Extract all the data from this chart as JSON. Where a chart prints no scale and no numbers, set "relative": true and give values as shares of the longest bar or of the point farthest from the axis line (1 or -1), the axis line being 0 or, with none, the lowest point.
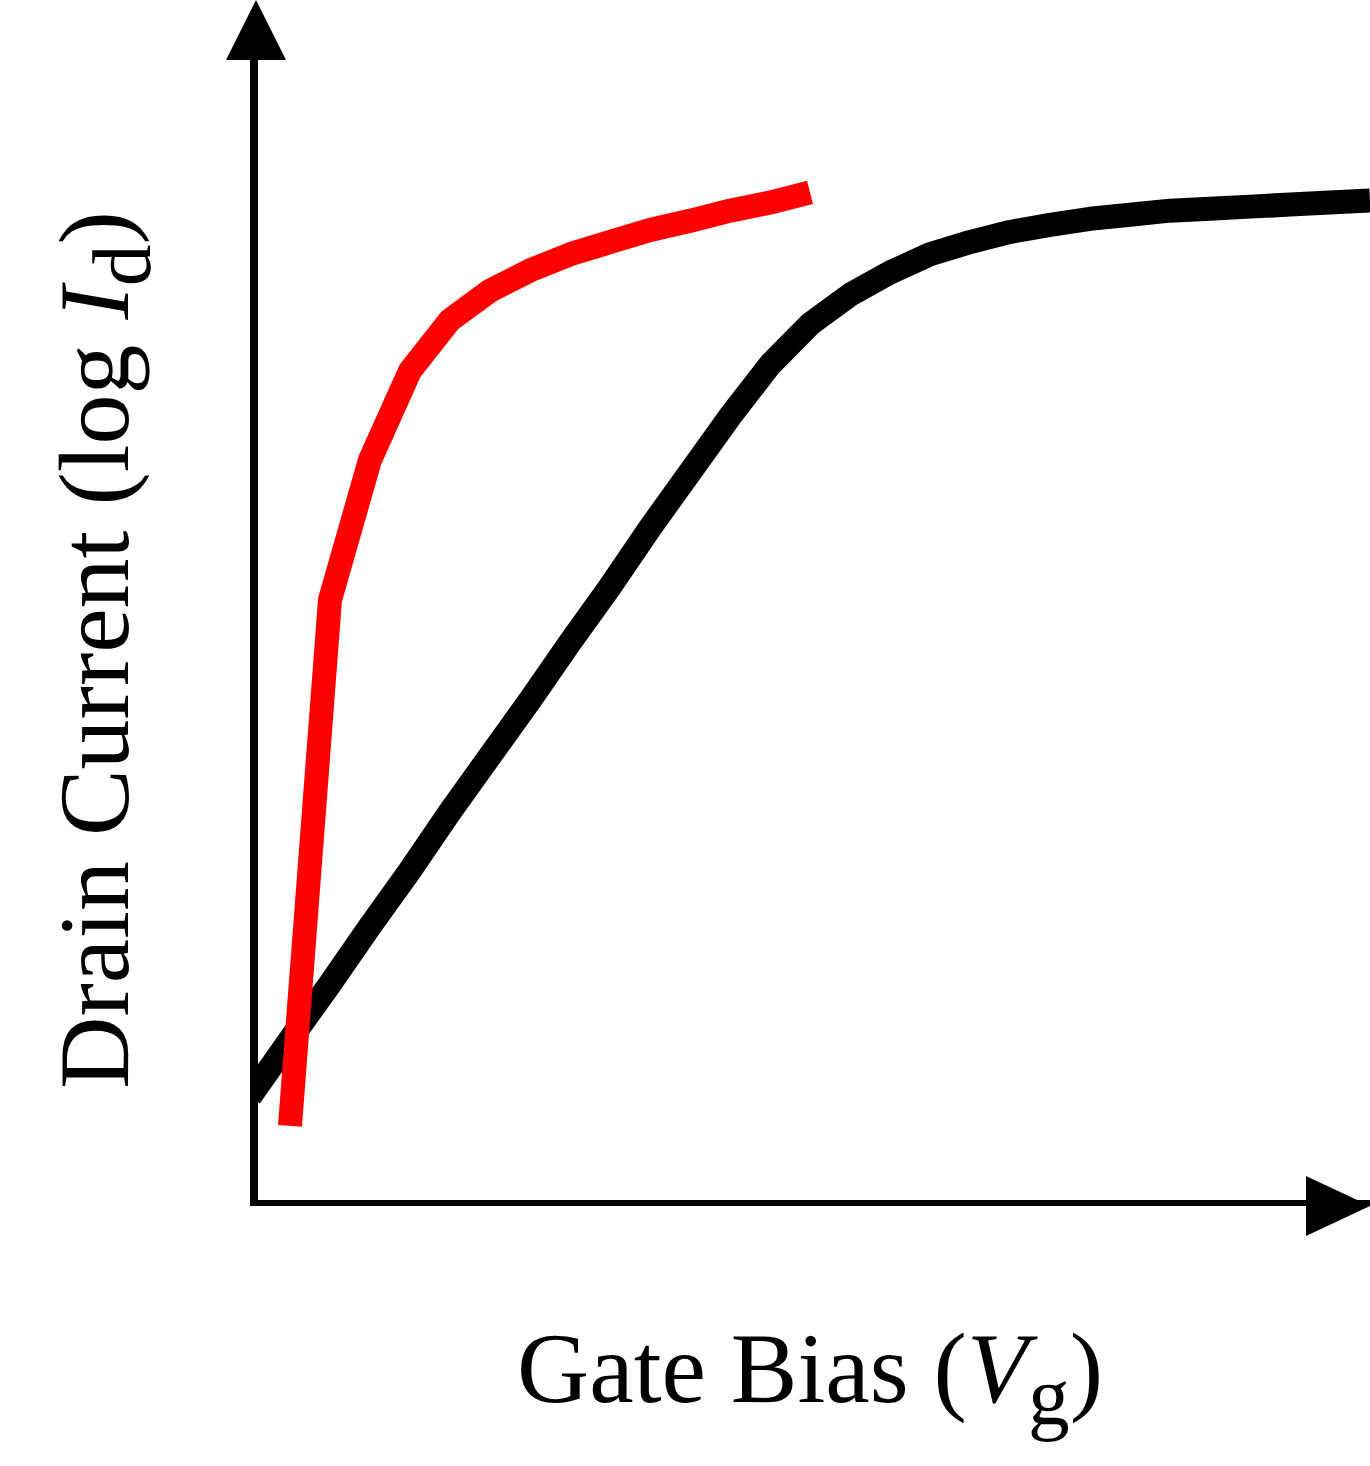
{
  "chart_data": {
    "type": "line",
    "relative": true,
    "xlabel": "Gate Bias (V$_{g}$)",
    "ylabel": "Drain Current (log I$_{d}$)",
    "line_style": "solid",
    "marker": "none",
    "grid": false,
    "categories": [
      null,
      null,
      null,
      null,
      null,
      null,
      null,
      null,
      null,
      null,
      null,
      null,
      null,
      null,
      null,
      null,
      null,
      null,
      null,
      null,
      null,
      null,
      null,
      null,
      null,
      null,
      null,
      null,
      null
    ],
    "series": [
      {
        "color": "#000000",
        "values": [
          0.108,
          0.164,
          0.219,
          0.276,
          0.331,
          0.389,
          0.444,
          0.499,
          0.556,
          0.611,
          0.669,
          0.724,
          0.779,
          0.83,
          0.87,
          0.899,
          0.921,
          0.939,
          0.951,
          0.961,
          0.968,
          0.974,
          0.978,
          0.982,
          0.984,
          0.986,
          0.988,
          0.99,
          0.992
        ]
      },
      {
        "color": "#ff0000",
        "values": [
          null,
          0.079,
          0.598,
          0.736,
          0.824,
          0.874,
          0.903,
          0.923,
          0.939,
          0.951,
          0.963,
          0.972,
          0.982,
          0.99,
          1,
          null,
          null,
          null,
          null,
          null,
          null,
          null,
          null,
          null,
          null,
          null,
          null,
          null,
          null
        ]
      }
    ]
  }
}
